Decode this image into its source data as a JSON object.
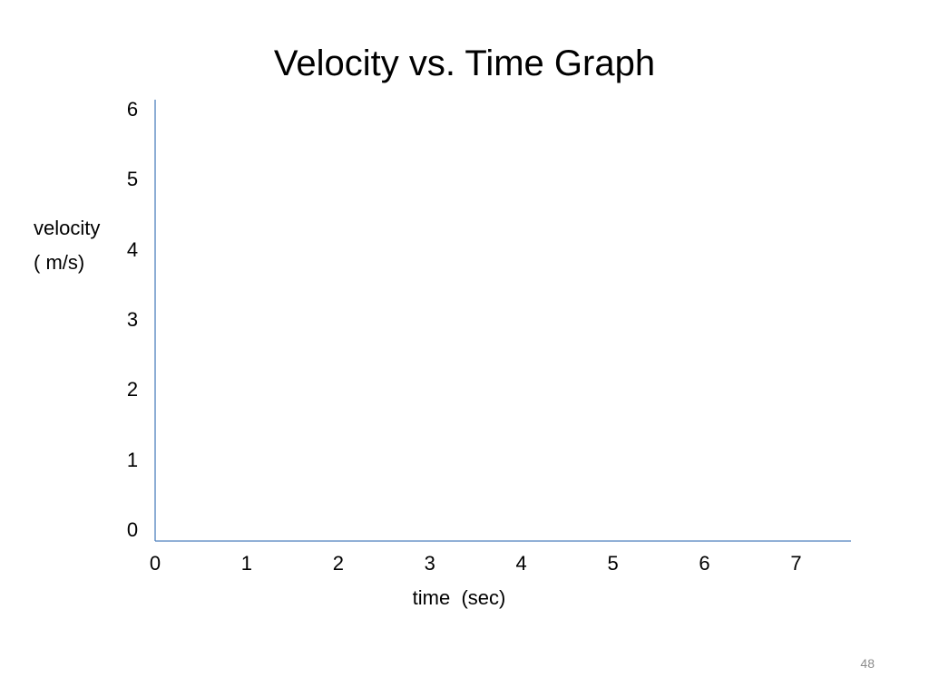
{
  "slide": {
    "number": "48"
  },
  "chart_data": {
    "type": "line",
    "title": "Velocity vs. Time Graph",
    "xlabel": "time  (sec)",
    "ylabel": "velocity\n( m/s)",
    "x_ticks": [
      "0",
      "1",
      "2",
      "3",
      "4",
      "5",
      "6",
      "7"
    ],
    "y_ticks": [
      "0",
      "1",
      "2",
      "3",
      "4",
      "5",
      "6"
    ],
    "xlim": [
      0,
      7.6
    ],
    "ylim": [
      0,
      6.3
    ],
    "series": [],
    "grid": false,
    "axis_color": "#4f81bd"
  }
}
